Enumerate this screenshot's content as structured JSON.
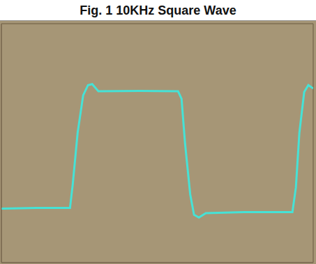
{
  "chart_data": {
    "type": "line",
    "title": "Fig. 1 10KHz Square Wave",
    "x": [
      0,
      1.0,
      1.98,
      2.06,
      2.2,
      2.36,
      2.5,
      2.62,
      2.8,
      4.0,
      5.1,
      5.2,
      5.3,
      5.45,
      5.56,
      5.7,
      5.9,
      7.0,
      8.4,
      8.5,
      8.6,
      8.74,
      8.86,
      9.0
    ],
    "values": [
      1.58,
      1.6,
      1.6,
      2.3,
      3.8,
      4.9,
      5.2,
      5.23,
      5.02,
      5.03,
      5.02,
      4.8,
      3.5,
      2.0,
      1.4,
      1.32,
      1.45,
      1.48,
      1.48,
      2.2,
      3.8,
      5.0,
      5.2,
      5.1
    ],
    "color": "#46e2d6",
    "xlim": [
      0,
      9
    ],
    "ylim": [
      0,
      7
    ],
    "xticks": [
      0,
      1,
      2,
      3,
      4,
      5,
      6,
      7,
      8,
      9
    ],
    "yticks": [
      0,
      1,
      2,
      3,
      4,
      5,
      6,
      7
    ],
    "grid": true,
    "tick_labels": false
  }
}
